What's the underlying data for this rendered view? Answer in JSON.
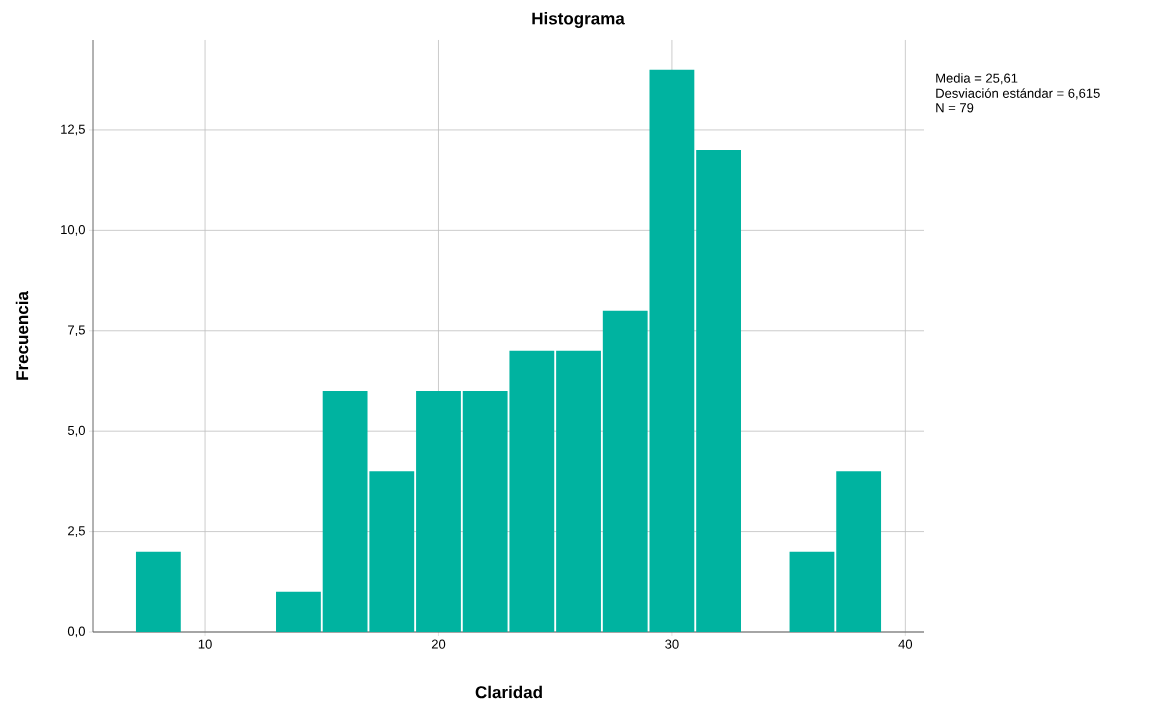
{
  "chart_data": {
    "type": "histogram",
    "title": "Histograma",
    "xlabel": "Claridad",
    "ylabel": "Frecuencia",
    "bins": [
      7,
      9,
      11,
      13,
      15,
      17,
      19,
      21,
      23,
      25,
      27,
      29,
      31,
      33,
      35,
      37,
      39
    ],
    "values": [
      2,
      0,
      0,
      1,
      6,
      4,
      6,
      6,
      7,
      7,
      8,
      14,
      12,
      0,
      2,
      4
    ],
    "color": "#00b3a0",
    "xlim": [
      5.2,
      40.8
    ],
    "ylim": [
      0,
      14.74
    ],
    "xticks": [
      10,
      20,
      30,
      40
    ],
    "yticks": [
      {
        "value": 0,
        "label": "0,0"
      },
      {
        "value": 2.5,
        "label": "2,5"
      },
      {
        "value": 5,
        "label": "5,0"
      },
      {
        "value": 7.5,
        "label": "7,5"
      },
      {
        "value": 10,
        "label": "10,0"
      },
      {
        "value": 12.5,
        "label": "12,5"
      }
    ],
    "grid": true,
    "annotations": [
      "Media = 25,61",
      "Desviación estándar = 6,615",
      "N = 79"
    ]
  }
}
